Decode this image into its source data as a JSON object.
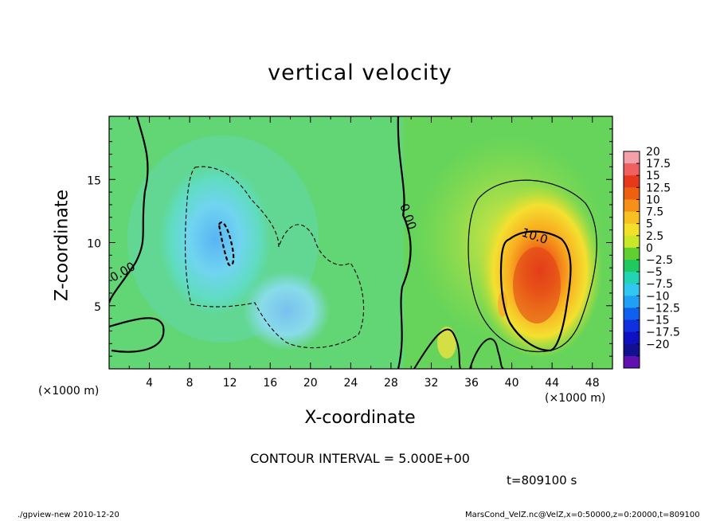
{
  "chart_data": {
    "type": "heatmap",
    "title": "vertical velocity",
    "xlabel": "X-coordinate",
    "ylabel": "Z-coordinate",
    "x_unit_label": "(×1000 m)",
    "y_unit_label": "(×1000 m)",
    "xlim": [
      0,
      50
    ],
    "ylim": [
      0,
      20
    ],
    "xticks": [
      4,
      8,
      12,
      16,
      20,
      24,
      28,
      32,
      36,
      40,
      44,
      48
    ],
    "yticks": [
      5,
      10,
      15
    ],
    "contour_interval_text": "CONTOUR INTERVAL = 5.000E+00",
    "time_text": "t=809100 s",
    "contour_labels": [
      "0.00",
      "0.00",
      "10.0"
    ],
    "colorbar": {
      "labels": [
        "20",
        "17.5",
        "15",
        "12.5",
        "10",
        "7.5",
        "5",
        "2.5",
        "0",
        "−2.5",
        "−5",
        "−7.5",
        "−10",
        "−12.5",
        "−15",
        "−17.5",
        "−20"
      ],
      "colors": [
        "#f4a0a8",
        "#f06060",
        "#e8381c",
        "#ee6010",
        "#f69018",
        "#f8c020",
        "#f4e028",
        "#c8e828",
        "#60d030",
        "#20c860",
        "#20d4b4",
        "#30c8f0",
        "#20a0f4",
        "#1060f0",
        "#1030e0",
        "#1010c0",
        "#101090",
        "#6010b0"
      ]
    },
    "features": [
      {
        "kind": "updraft",
        "x_center": 42,
        "z_center": 7,
        "peak": 17
      },
      {
        "kind": "downdraft",
        "x_center": 11,
        "z_center": 10.5,
        "peak": -8
      },
      {
        "kind": "downdraft",
        "x_center": 19,
        "z_center": 4.5,
        "peak": -7
      }
    ]
  },
  "footer": {
    "left": "./gpview-new  2010-12-20",
    "right": "MarsCond_VelZ.nc@VelZ,x=0:50000,z=0:20000,t=809100"
  }
}
